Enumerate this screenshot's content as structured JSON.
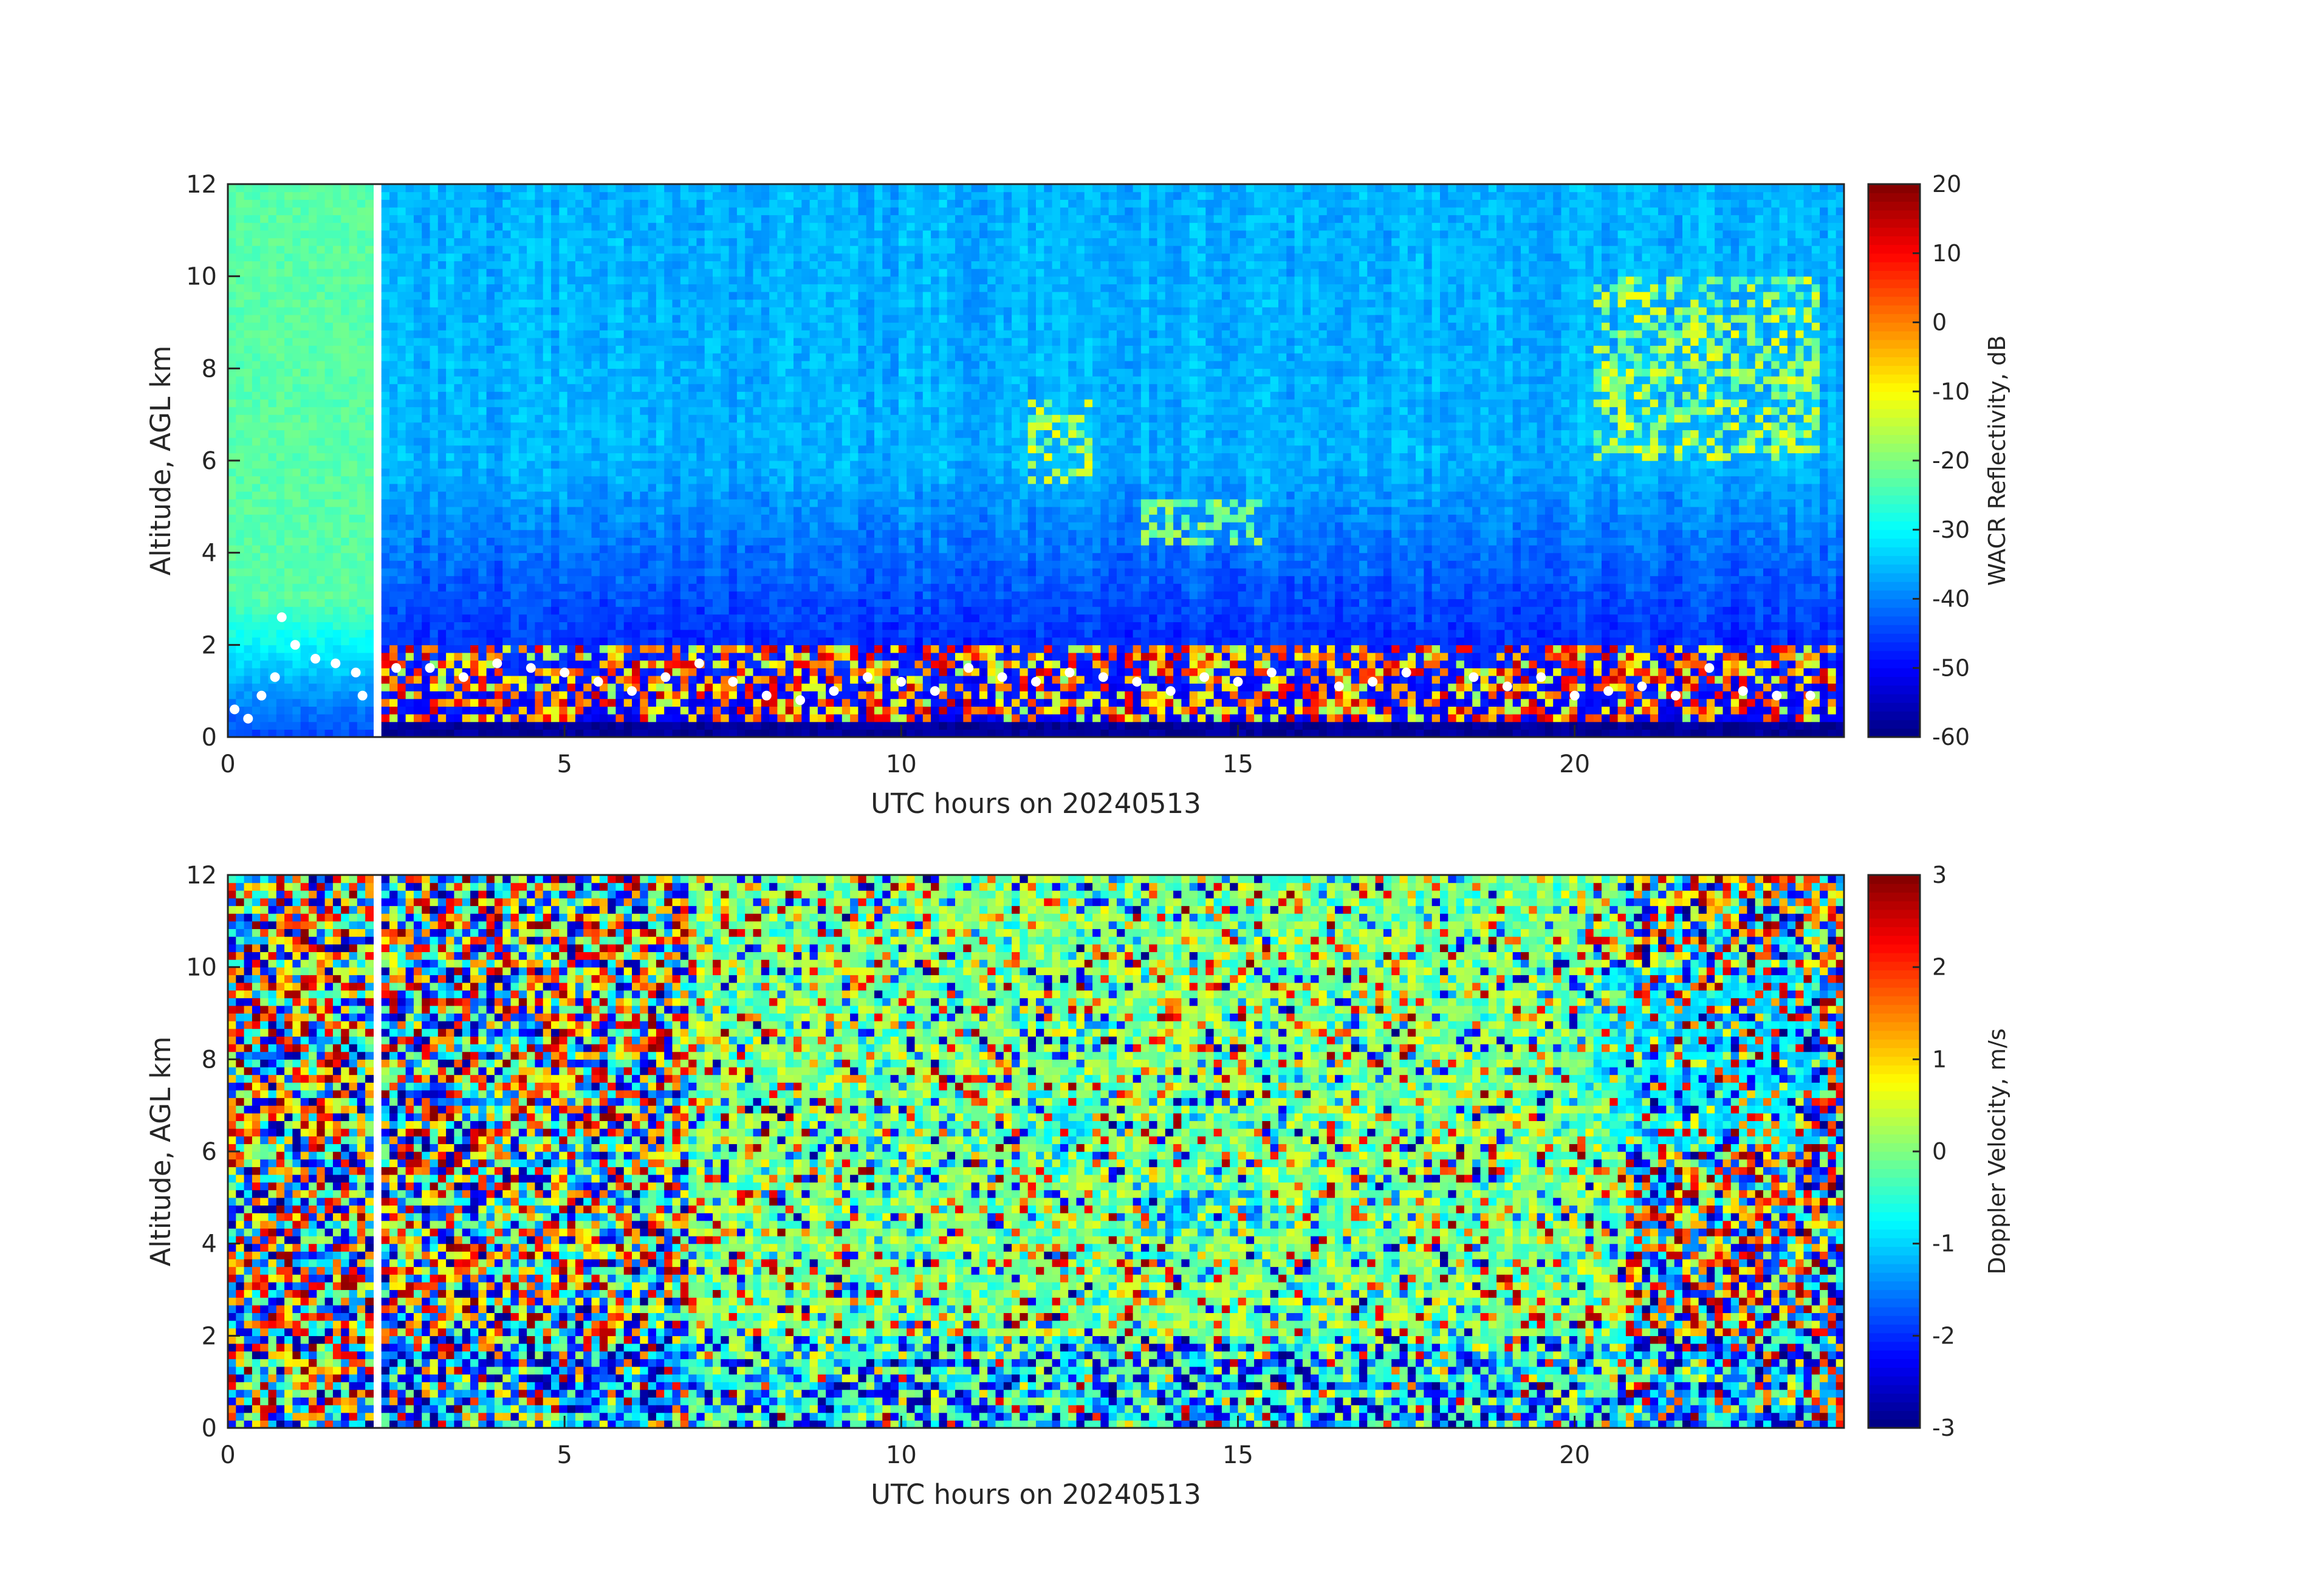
{
  "chart_data": [
    {
      "type": "heatmap",
      "title": "",
      "xlabel": "UTC hours on 20240513",
      "ylabel": "Altitude, AGL km",
      "xlim": [
        0,
        24
      ],
      "ylim": [
        0,
        12
      ],
      "xticks": [
        0,
        5,
        10,
        15,
        20
      ],
      "yticks": [
        0,
        2,
        4,
        6,
        8,
        10,
        12
      ],
      "grid": false,
      "data_gap_hours": [
        2.15,
        2.25
      ],
      "colorbar": {
        "label": "WACR Reflectivity, dB",
        "range": [
          -60,
          20
        ],
        "ticks": [
          20,
          10,
          0,
          -10,
          -20,
          -30,
          -40,
          -50,
          -60
        ],
        "colormap": "jet"
      },
      "features": [
        {
          "name": "low cloud/precipitation layer",
          "x_range": [
            2.3,
            23.9
          ],
          "y_range": [
            0,
            2
          ],
          "value_db": [
            -20,
            15
          ]
        },
        {
          "name": "cloud",
          "x_range": [
            11.9,
            12.8
          ],
          "y_range": [
            5.5,
            7.3
          ],
          "value_db": [
            -25,
            -10
          ]
        },
        {
          "name": "cloud",
          "x_range": [
            13.6,
            15.3
          ],
          "y_range": [
            4.2,
            5.1
          ],
          "value_db": [
            -25,
            -15
          ]
        },
        {
          "name": "upper cloud",
          "x_range": [
            20.3,
            23.7
          ],
          "y_range": [
            6.0,
            10.0
          ],
          "value_db": [
            -25,
            -10
          ]
        }
      ],
      "overlay_points": {
        "color": "#ffffff",
        "series": [
          {
            "x": 0.1,
            "y": 0.6
          },
          {
            "x": 0.3,
            "y": 0.4
          },
          {
            "x": 0.5,
            "y": 0.9
          },
          {
            "x": 0.7,
            "y": 1.3
          },
          {
            "x": 0.8,
            "y": 2.6
          },
          {
            "x": 1.0,
            "y": 2.0
          },
          {
            "x": 1.3,
            "y": 1.7
          },
          {
            "x": 1.6,
            "y": 1.6
          },
          {
            "x": 1.9,
            "y": 1.4
          },
          {
            "x": 2.0,
            "y": 0.9
          },
          {
            "x": 2.5,
            "y": 1.5
          },
          {
            "x": 3.0,
            "y": 1.5
          },
          {
            "x": 3.5,
            "y": 1.3
          },
          {
            "x": 4.0,
            "y": 1.6
          },
          {
            "x": 4.5,
            "y": 1.5
          },
          {
            "x": 5.0,
            "y": 1.4
          },
          {
            "x": 5.5,
            "y": 1.2
          },
          {
            "x": 6.0,
            "y": 1.0
          },
          {
            "x": 6.5,
            "y": 1.3
          },
          {
            "x": 7.0,
            "y": 1.6
          },
          {
            "x": 7.5,
            "y": 1.2
          },
          {
            "x": 8.0,
            "y": 0.9
          },
          {
            "x": 8.5,
            "y": 0.8
          },
          {
            "x": 9.0,
            "y": 1.0
          },
          {
            "x": 9.5,
            "y": 1.3
          },
          {
            "x": 10.0,
            "y": 1.2
          },
          {
            "x": 10.5,
            "y": 1.0
          },
          {
            "x": 11.0,
            "y": 1.5
          },
          {
            "x": 11.5,
            "y": 1.3
          },
          {
            "x": 12.0,
            "y": 1.2
          },
          {
            "x": 12.5,
            "y": 1.4
          },
          {
            "x": 13.0,
            "y": 1.3
          },
          {
            "x": 13.5,
            "y": 1.2
          },
          {
            "x": 14.0,
            "y": 1.0
          },
          {
            "x": 14.5,
            "y": 1.3
          },
          {
            "x": 15.0,
            "y": 1.2
          },
          {
            "x": 15.5,
            "y": 1.4
          },
          {
            "x": 16.5,
            "y": 1.1
          },
          {
            "x": 17.0,
            "y": 1.2
          },
          {
            "x": 17.5,
            "y": 1.4
          },
          {
            "x": 18.5,
            "y": 1.3
          },
          {
            "x": 19.0,
            "y": 1.1
          },
          {
            "x": 19.5,
            "y": 1.3
          },
          {
            "x": 20.0,
            "y": 0.9
          },
          {
            "x": 20.5,
            "y": 1.0
          },
          {
            "x": 21.0,
            "y": 1.1
          },
          {
            "x": 21.5,
            "y": 0.9
          },
          {
            "x": 22.0,
            "y": 1.5
          },
          {
            "x": 22.5,
            "y": 1.0
          },
          {
            "x": 23.0,
            "y": 0.9
          },
          {
            "x": 23.5,
            "y": 0.9
          }
        ]
      }
    },
    {
      "type": "heatmap",
      "title": "",
      "xlabel": "UTC hours on 20240513",
      "ylabel": "Altitude, AGL km",
      "xlim": [
        0,
        24
      ],
      "ylim": [
        0,
        12
      ],
      "xticks": [
        0,
        5,
        10,
        15,
        20
      ],
      "yticks": [
        0,
        2,
        4,
        6,
        8,
        10,
        12
      ],
      "grid": false,
      "data_gap_hours": [
        2.15,
        2.25
      ],
      "colorbar": {
        "label": "Doppler Velocity, m/s",
        "range": [
          -3,
          3
        ],
        "ticks": [
          3,
          2,
          1,
          0,
          -1,
          -2,
          -3
        ],
        "colormap": "jet"
      },
      "features": [
        {
          "name": "low cloud/precipitation layer",
          "x_range": [
            2.3,
            23.9
          ],
          "y_range": [
            0,
            2
          ],
          "value_ms": [
            -3,
            0
          ]
        },
        {
          "name": "cloud",
          "x_range": [
            11.9,
            12.8
          ],
          "y_range": [
            5.5,
            7.3
          ],
          "value_ms": [
            -1.2,
            -0.5
          ]
        },
        {
          "name": "cloud",
          "x_range": [
            13.6,
            15.3
          ],
          "y_range": [
            4.2,
            5.1
          ],
          "value_ms": [
            -1.5,
            -0.8
          ]
        },
        {
          "name": "upper cloud",
          "x_range": [
            20.3,
            23.7
          ],
          "y_range": [
            6.0,
            10.0
          ],
          "value_ms": [
            -1.2,
            -0.6
          ]
        }
      ]
    }
  ]
}
